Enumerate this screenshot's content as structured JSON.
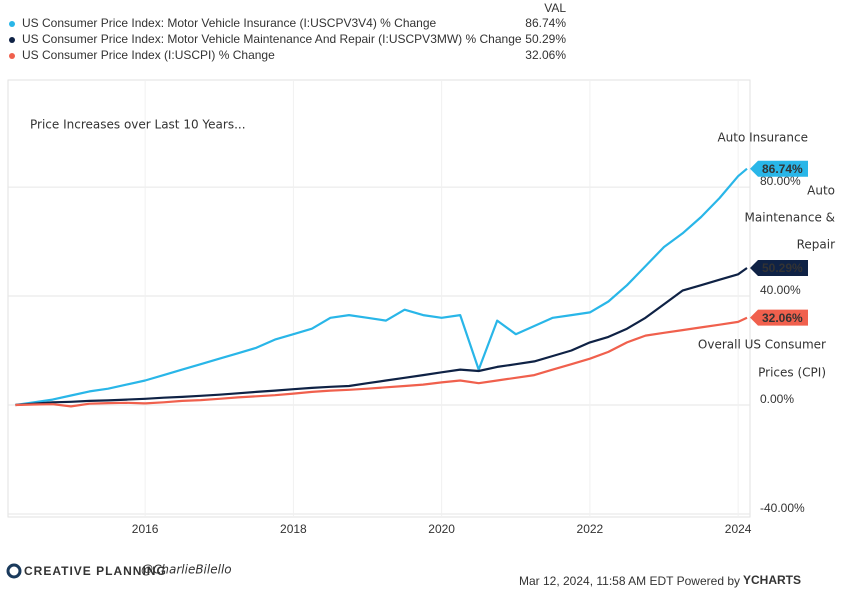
{
  "chart_data": {
    "type": "line",
    "legend_header": "VAL",
    "x": [
      2014.25,
      2014.5,
      2014.75,
      2015.0,
      2015.25,
      2015.5,
      2015.75,
      2016.0,
      2016.25,
      2016.5,
      2016.75,
      2017.0,
      2017.25,
      2017.5,
      2017.75,
      2018.0,
      2018.25,
      2018.5,
      2018.75,
      2019.0,
      2019.25,
      2019.5,
      2019.75,
      2020.0,
      2020.25,
      2020.5,
      2020.75,
      2021.0,
      2021.25,
      2021.5,
      2021.75,
      2022.0,
      2022.25,
      2022.5,
      2022.75,
      2023.0,
      2023.25,
      2023.5,
      2023.75,
      2024.0,
      2024.12
    ],
    "series": [
      {
        "name": "US Consumer Price Index: Motor Vehicle Insurance (I:USCPV3V4) % Change",
        "color": "#29b6e8",
        "end_label": "86.74%",
        "values": [
          0,
          1,
          2,
          3.5,
          5,
          6,
          7.5,
          9,
          11,
          13,
          15,
          17,
          19,
          21,
          24,
          26,
          28,
          32,
          33,
          32,
          31,
          35,
          33,
          32,
          33,
          13,
          31,
          26,
          29,
          32,
          33,
          34,
          38,
          44,
          51,
          58,
          63,
          69,
          76,
          84,
          86.74
        ]
      },
      {
        "name": "US Consumer Price Index: Motor Vehicle Maintenance And Repair (I:USCPV3MW) % Change",
        "color": "#0f2245",
        "end_label": "50.29%",
        "values": [
          0,
          0.5,
          1,
          1.2,
          1.5,
          1.7,
          2,
          2.3,
          2.7,
          3,
          3.4,
          3.8,
          4.3,
          4.8,
          5.3,
          5.8,
          6.3,
          6.7,
          7,
          8,
          9,
          10,
          11,
          12,
          13,
          12.5,
          14,
          15,
          16,
          18,
          20,
          23,
          25,
          28,
          32,
          37,
          42,
          44,
          46,
          48,
          50.29
        ]
      },
      {
        "name": "US Consumer Price Index (I:USCPI) % Change",
        "color": "#f0604d",
        "end_label": "32.06%",
        "values": [
          0,
          0.2,
          0.3,
          -0.5,
          0.5,
          0.7,
          0.8,
          0.6,
          1,
          1.5,
          1.8,
          2.3,
          2.8,
          3.2,
          3.6,
          4.2,
          4.8,
          5.3,
          5.6,
          6,
          6.5,
          7,
          7.5,
          8.3,
          9,
          8,
          9,
          10,
          11,
          13,
          15,
          17,
          19.5,
          23,
          25.5,
          26.5,
          27.5,
          28.5,
          29.5,
          30.5,
          32.06
        ]
      }
    ],
    "xlim": [
      2014.15,
      2024.16
    ],
    "xticks": [
      2016,
      2018,
      2020,
      2022,
      2024
    ],
    "ylim": [
      -41.1,
      119.3
    ],
    "yticks": [
      {
        "value": -40,
        "label": "-40.00%"
      },
      {
        "value": 0,
        "label": "0.00%"
      },
      {
        "value": 40,
        "label": "40.00%"
      },
      {
        "value": 80,
        "label": "80.00%"
      }
    ],
    "grid": true,
    "annotations": [
      [
        "Price Increases over Last 10 Years..."
      ],
      [
        "Auto Insurance"
      ],
      [
        "Auto",
        "Maintenance &",
        "Repair"
      ],
      [
        "Overall US Consumer",
        "Prices (CPI)"
      ]
    ],
    "footer": {
      "brand": "CREATIVE PLANNING",
      "handle": "@CharlieBilello",
      "timestamp": "Mar 12, 2024, 11:58 AM EDT Powered by",
      "provider": "YCHARTS"
    }
  }
}
